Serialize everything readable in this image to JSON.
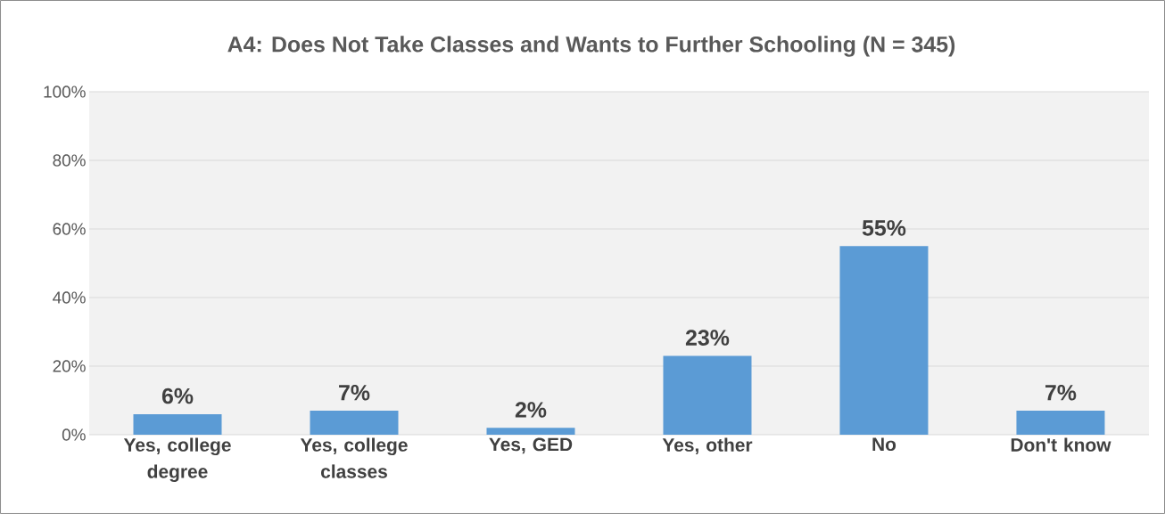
{
  "chart_data": {
    "type": "bar",
    "title": "A4: Does Not Take Classes and Wants to Further Schooling (N = 345)",
    "categories": [
      "Yes, college degree",
      "Yes, college classes",
      "Yes, GED",
      "Yes, other",
      "No",
      "Don't know"
    ],
    "values": [
      6,
      7,
      2,
      23,
      55,
      7
    ],
    "value_labels": [
      "6%",
      "7%",
      "2%",
      "23%",
      "55%",
      "7%"
    ],
    "color": "#5b9bd5",
    "ylim": [
      0,
      100
    ],
    "yticks": [
      {
        "value": 0,
        "label": "0%"
      },
      {
        "value": 20,
        "label": "20%"
      },
      {
        "value": 40,
        "label": "40%"
      },
      {
        "value": 60,
        "label": "60%"
      },
      {
        "value": 80,
        "label": "80%"
      },
      {
        "value": 100,
        "label": "100%"
      }
    ],
    "grid": "y"
  }
}
